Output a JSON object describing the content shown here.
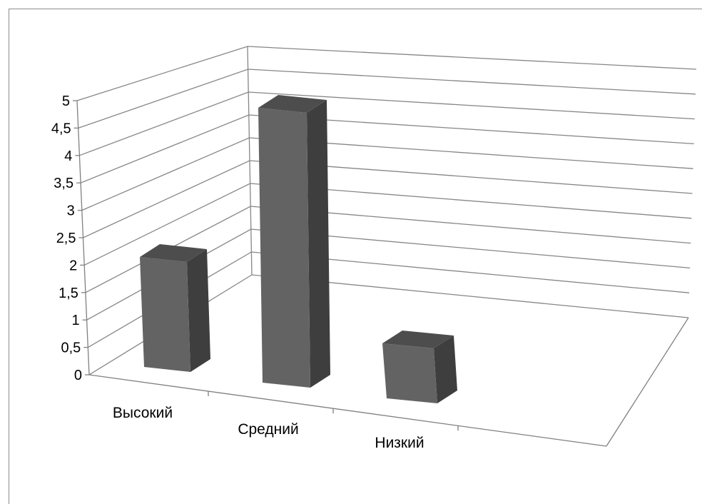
{
  "chart_data": {
    "type": "bar",
    "categories": [
      "Высокий",
      "Средний",
      "Низкий"
    ],
    "values": [
      2,
      5,
      1
    ],
    "ylim": [
      0,
      5
    ],
    "yticks": [
      "0",
      "0,5",
      "1",
      "1,5",
      "2",
      "2,5",
      "3",
      "3,5",
      "4",
      "4,5",
      "5"
    ],
    "title": "",
    "xlabel": "",
    "ylabel": "",
    "grid": true,
    "legend": "none",
    "three_d": true,
    "colors": {
      "front": "#636363",
      "side": "#3e3e3e",
      "top": "#4d4d4d",
      "grid": "#868686",
      "axis": "#808080"
    }
  }
}
